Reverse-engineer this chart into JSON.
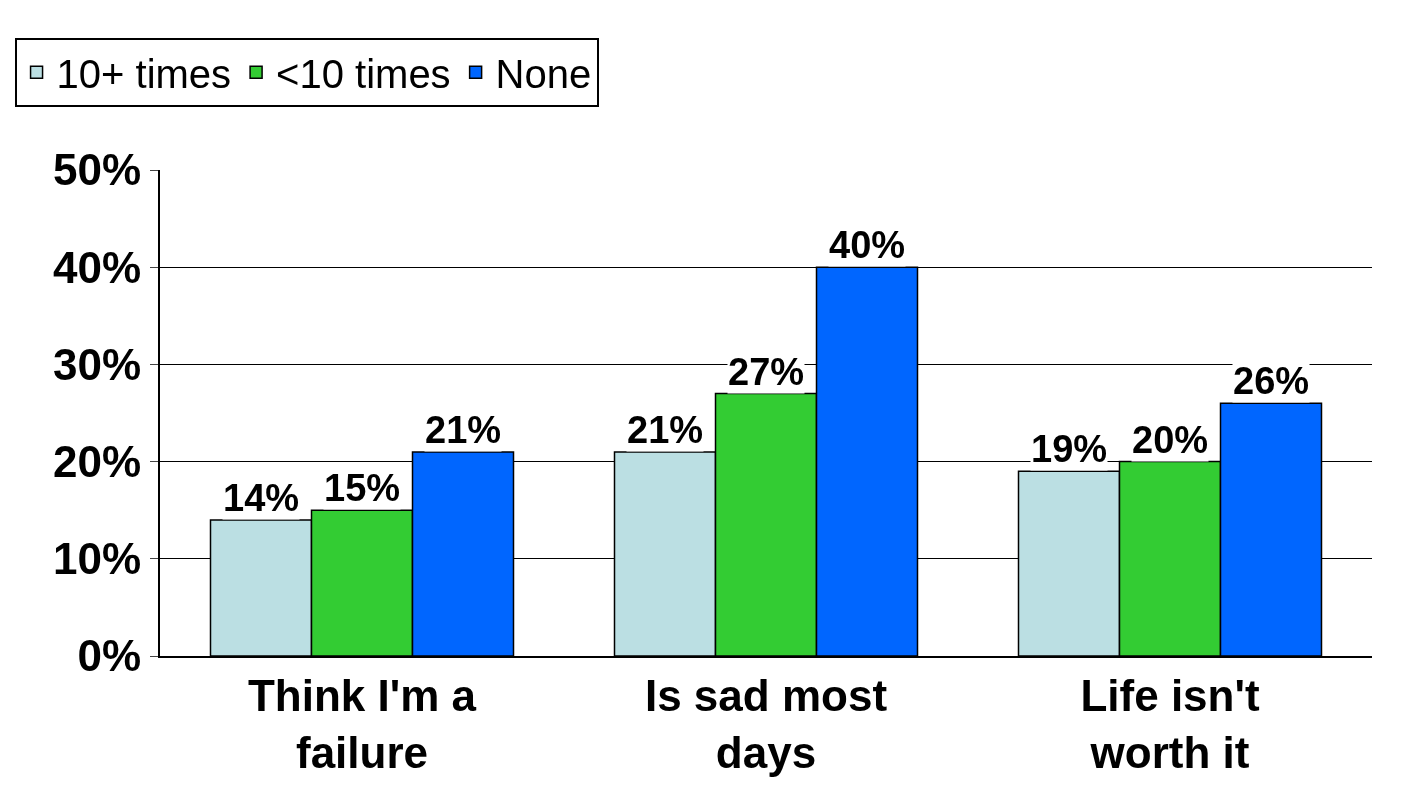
{
  "chart_data": {
    "type": "bar",
    "categories": [
      "Think I'm a failure",
      "Is sad most days",
      "Life isn't worth it"
    ],
    "series": [
      {
        "name": "10+ times",
        "color": "#bbdfe3",
        "values": [
          14,
          21,
          19
        ],
        "value_labels": [
          "14%",
          "21%",
          "19%"
        ]
      },
      {
        "name": "<10 times",
        "color": "#33cc33",
        "values": [
          15,
          27,
          20
        ],
        "value_labels": [
          "15%",
          "27%",
          "20%"
        ]
      },
      {
        "name": "None",
        "color": "#0066ff",
        "values": [
          21,
          40,
          26
        ],
        "value_labels": [
          "21%",
          "40%",
          "26%"
        ]
      }
    ],
    "ylim": [
      0,
      50
    ],
    "yticks": [
      {
        "value": 0,
        "label": "0%"
      },
      {
        "value": 10,
        "label": "10%"
      },
      {
        "value": 20,
        "label": "20%"
      },
      {
        "value": 30,
        "label": "30%"
      },
      {
        "value": 40,
        "label": "40%"
      },
      {
        "value": 50,
        "label": "50%"
      }
    ],
    "grid": "y",
    "legend": "top left"
  }
}
